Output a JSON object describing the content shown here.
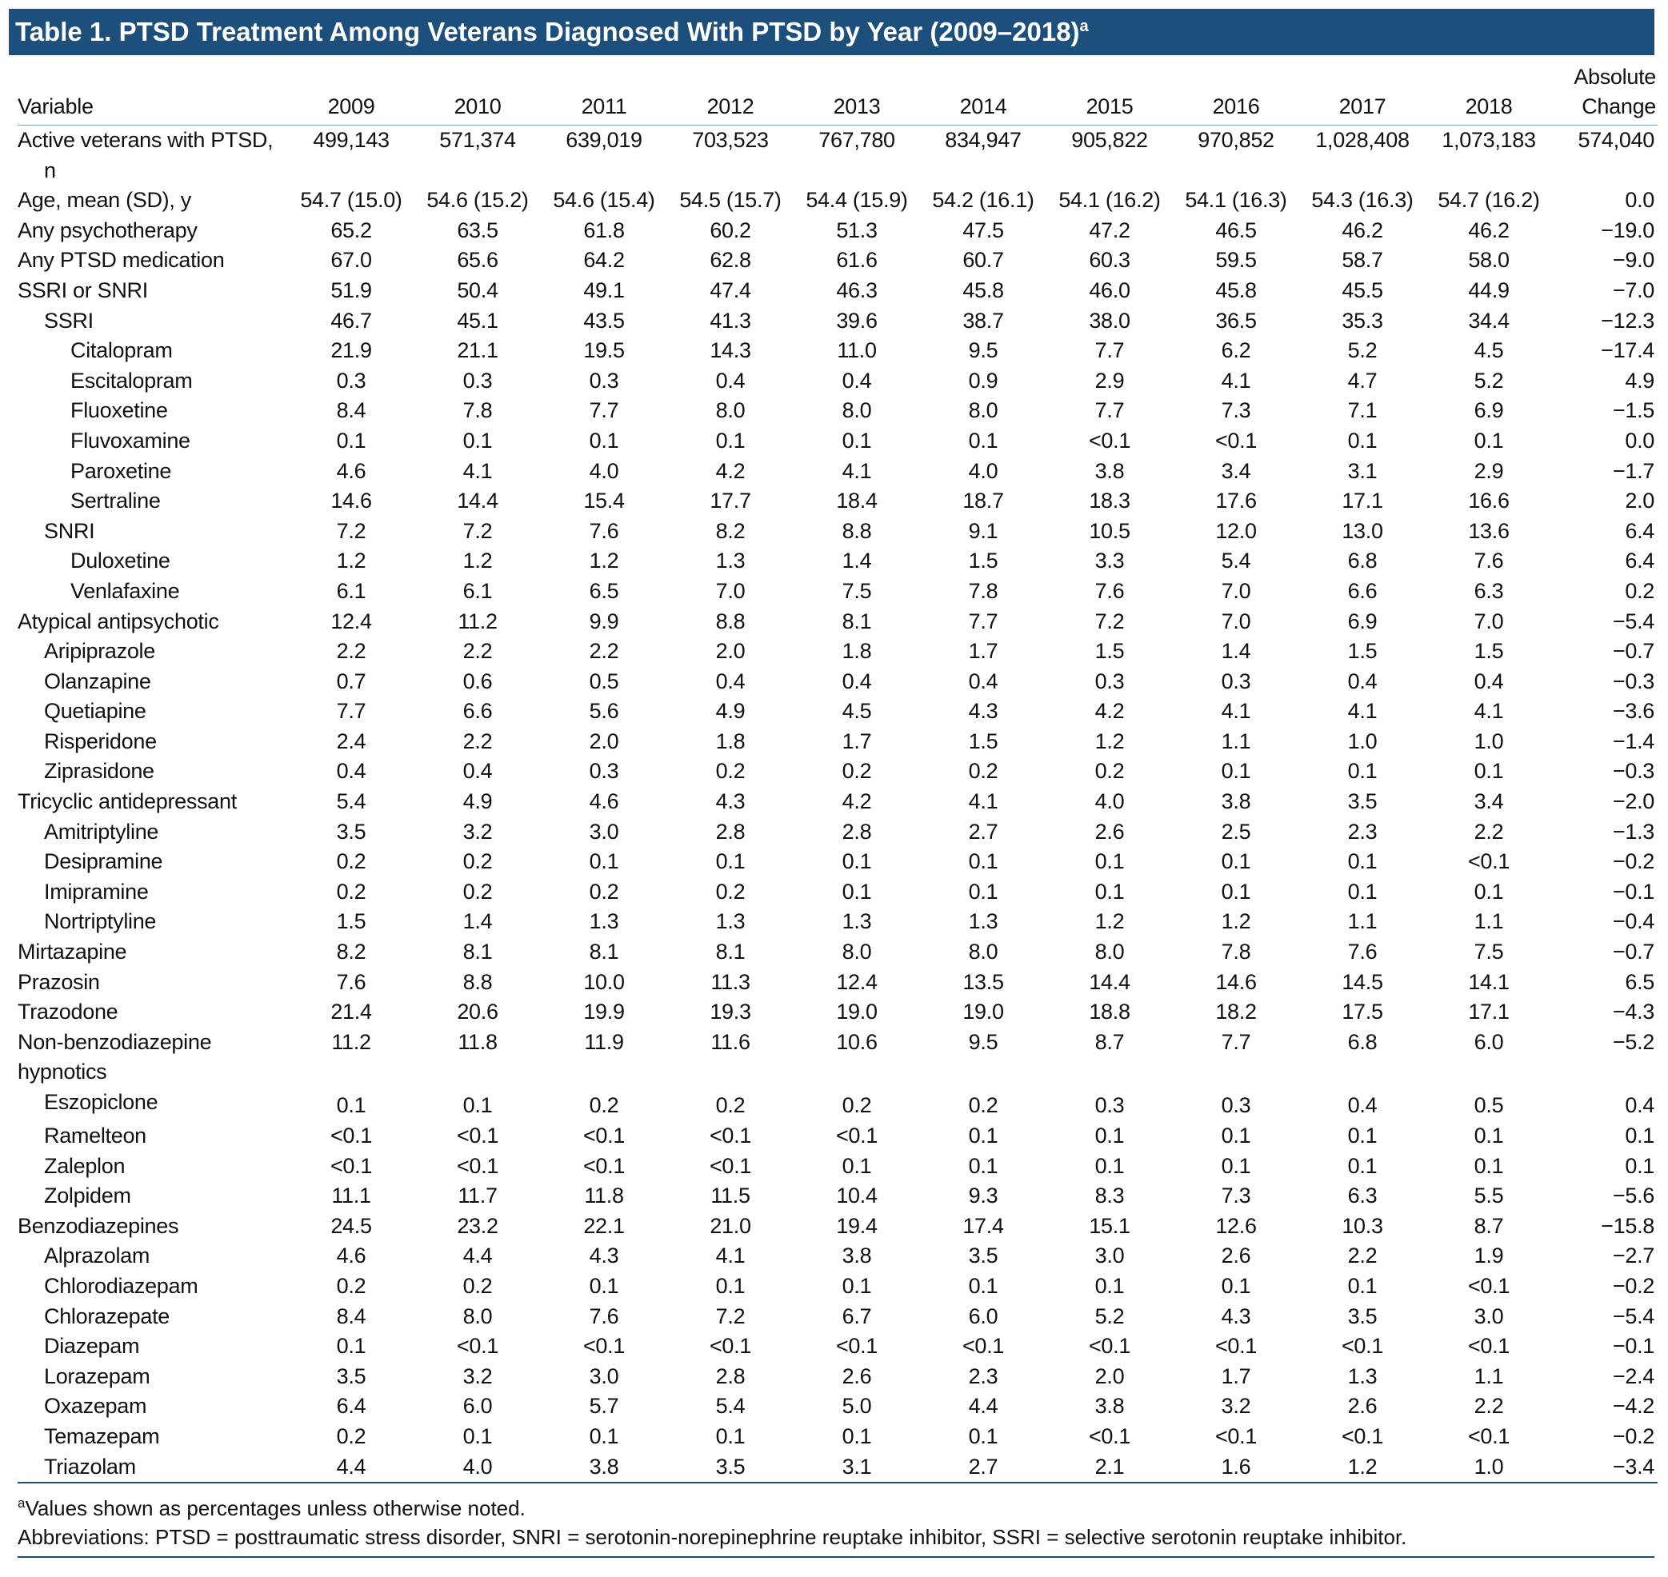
{
  "table": {
    "title": "Table 1. PTSD Treatment Among Veterans Diagnosed With PTSD by Year (2009–2018)",
    "title_marker": "a",
    "header": [
      "Variable",
      "2009",
      "2010",
      "2011",
      "2012",
      "2013",
      "2014",
      "2015",
      "2016",
      "2017",
      "2018",
      "Absolute Change"
    ],
    "rows": [
      {
        "label": "Active veterans with PTSD, n",
        "values": [
          "499,143",
          "571,374",
          "639,019",
          "703,523",
          "767,780",
          "834,947",
          "905,822",
          "970,852",
          "1,028,408",
          "1,073,183",
          "574,040"
        ]
      },
      {
        "label": "Age, mean (SD), y",
        "values": [
          "54.7 (15.0)",
          "54.6 (15.2)",
          "54.6 (15.4)",
          "54.5 (15.7)",
          "54.4 (15.9)",
          "54.2 (16.1)",
          "54.1 (16.2)",
          "54.1 (16.3)",
          "54.3 (16.3)",
          "54.7 (16.2)",
          "0.0"
        ]
      },
      {
        "label": "Any psychotherapy",
        "values": [
          "65.2",
          "63.5",
          "61.8",
          "60.2",
          "51.3",
          "47.5",
          "47.2",
          "46.5",
          "46.2",
          "46.2",
          "−19.0"
        ]
      },
      {
        "label": "Any PTSD medication",
        "values": [
          "67.0",
          "65.6",
          "64.2",
          "62.8",
          "61.6",
          "60.7",
          "60.3",
          "59.5",
          "58.7",
          "58.0",
          "−9.0"
        ]
      },
      {
        "label": "SSRI or SNRI",
        "values": [
          "51.9",
          "50.4",
          "49.1",
          "47.4",
          "46.3",
          "45.8",
          "46.0",
          "45.8",
          "45.5",
          "44.9",
          "−7.0"
        ]
      },
      {
        "label": "SSRI",
        "values": [
          "46.7",
          "45.1",
          "43.5",
          "41.3",
          "39.6",
          "38.7",
          "38.0",
          "36.5",
          "35.3",
          "34.4",
          "−12.3"
        ]
      },
      {
        "label": "Citalopram",
        "values": [
          "21.9",
          "21.1",
          "19.5",
          "14.3",
          "11.0",
          "9.5",
          "7.7",
          "6.2",
          "5.2",
          "4.5",
          "−17.4"
        ]
      },
      {
        "label": "Escitalopram",
        "values": [
          "0.3",
          "0.3",
          "0.3",
          "0.4",
          "0.4",
          "0.9",
          "2.9",
          "4.1",
          "4.7",
          "5.2",
          "4.9"
        ]
      },
      {
        "label": "Fluoxetine",
        "values": [
          "8.4",
          "7.8",
          "7.7",
          "8.0",
          "8.0",
          "8.0",
          "7.7",
          "7.3",
          "7.1",
          "6.9",
          "−1.5"
        ]
      },
      {
        "label": "Fluvoxamine",
        "values": [
          "0.1",
          "0.1",
          "0.1",
          "0.1",
          "0.1",
          "0.1",
          "<0.1",
          "<0.1",
          "0.1",
          "0.1",
          "0.0"
        ]
      },
      {
        "label": "Paroxetine",
        "values": [
          "4.6",
          "4.1",
          "4.0",
          "4.2",
          "4.1",
          "4.0",
          "3.8",
          "3.4",
          "3.1",
          "2.9",
          "−1.7"
        ]
      },
      {
        "label": "Sertraline",
        "values": [
          "14.6",
          "14.4",
          "15.4",
          "17.7",
          "18.4",
          "18.7",
          "18.3",
          "17.6",
          "17.1",
          "16.6",
          "2.0"
        ]
      },
      {
        "label": "SNRI",
        "values": [
          "7.2",
          "7.2",
          "7.6",
          "8.2",
          "8.8",
          "9.1",
          "10.5",
          "12.0",
          "13.0",
          "13.6",
          "6.4"
        ]
      },
      {
        "label": "Duloxetine",
        "values": [
          "1.2",
          "1.2",
          "1.2",
          "1.3",
          "1.4",
          "1.5",
          "3.3",
          "5.4",
          "6.8",
          "7.6",
          "6.4"
        ]
      },
      {
        "label": "Venlafaxine",
        "values": [
          "6.1",
          "6.1",
          "6.5",
          "7.0",
          "7.5",
          "7.8",
          "7.6",
          "7.0",
          "6.6",
          "6.3",
          "0.2"
        ]
      },
      {
        "label": "Atypical antipsychotic",
        "values": [
          "12.4",
          "11.2",
          "9.9",
          "8.8",
          "8.1",
          "7.7",
          "7.2",
          "7.0",
          "6.9",
          "7.0",
          "−5.4"
        ]
      },
      {
        "label": "Aripiprazole",
        "values": [
          "2.2",
          "2.2",
          "2.2",
          "2.0",
          "1.8",
          "1.7",
          "1.5",
          "1.4",
          "1.5",
          "1.5",
          "−0.7"
        ]
      },
      {
        "label": "Olanzapine",
        "values": [
          "0.7",
          "0.6",
          "0.5",
          "0.4",
          "0.4",
          "0.4",
          "0.3",
          "0.3",
          "0.4",
          "0.4",
          "−0.3"
        ]
      },
      {
        "label": "Quetiapine",
        "values": [
          "7.7",
          "6.6",
          "5.6",
          "4.9",
          "4.5",
          "4.3",
          "4.2",
          "4.1",
          "4.1",
          "4.1",
          "−3.6"
        ]
      },
      {
        "label": "Risperidone",
        "values": [
          "2.4",
          "2.2",
          "2.0",
          "1.8",
          "1.7",
          "1.5",
          "1.2",
          "1.1",
          "1.0",
          "1.0",
          "−1.4"
        ]
      },
      {
        "label": "Ziprasidone",
        "values": [
          "0.4",
          "0.4",
          "0.3",
          "0.2",
          "0.2",
          "0.2",
          "0.2",
          "0.1",
          "0.1",
          "0.1",
          "−0.3"
        ]
      },
      {
        "label": "Tricyclic antidepressant",
        "values": [
          "5.4",
          "4.9",
          "4.6",
          "4.3",
          "4.2",
          "4.1",
          "4.0",
          "3.8",
          "3.5",
          "3.4",
          "−2.0"
        ]
      },
      {
        "label": "Amitriptyline",
        "values": [
          "3.5",
          "3.2",
          "3.0",
          "2.8",
          "2.8",
          "2.7",
          "2.6",
          "2.5",
          "2.3",
          "2.2",
          "−1.3"
        ]
      },
      {
        "label": "Desipramine",
        "values": [
          "0.2",
          "0.2",
          "0.1",
          "0.1",
          "0.1",
          "0.1",
          "0.1",
          "0.1",
          "0.1",
          "<0.1",
          "−0.2"
        ]
      },
      {
        "label": "Imipramine",
        "values": [
          "0.2",
          "0.2",
          "0.2",
          "0.2",
          "0.1",
          "0.1",
          "0.1",
          "0.1",
          "0.1",
          "0.1",
          "−0.1"
        ]
      },
      {
        "label": "Nortriptyline",
        "values": [
          "1.5",
          "1.4",
          "1.3",
          "1.3",
          "1.3",
          "1.3",
          "1.2",
          "1.2",
          "1.1",
          "1.1",
          "−0.4"
        ]
      },
      {
        "label": "Mirtazapine",
        "values": [
          "8.2",
          "8.1",
          "8.1",
          "8.1",
          "8.0",
          "8.0",
          "8.0",
          "7.8",
          "7.6",
          "7.5",
          "−0.7"
        ]
      },
      {
        "label": "Prazosin",
        "values": [
          "7.6",
          "8.8",
          "10.0",
          "11.3",
          "12.4",
          "13.5",
          "14.4",
          "14.6",
          "14.5",
          "14.1",
          "6.5"
        ]
      },
      {
        "label": "Trazodone",
        "values": [
          "21.4",
          "20.6",
          "19.9",
          "19.3",
          "19.0",
          "19.0",
          "18.8",
          "18.2",
          "17.5",
          "17.1",
          "−4.3"
        ]
      },
      {
        "label": "Non-benzodiazepine hypnotics",
        "values": [
          "11.2",
          "11.8",
          "11.9",
          "11.6",
          "10.6",
          "9.5",
          "8.7",
          "7.7",
          "6.8",
          "6.0",
          "−5.2"
        ]
      },
      {
        "label": "Eszopiclone",
        "values": [
          "0.1",
          "0.1",
          "0.2",
          "0.2",
          "0.2",
          "0.2",
          "0.3",
          "0.3",
          "0.4",
          "0.5",
          "0.4"
        ]
      },
      {
        "label": "Ramelteon",
        "values": [
          "<0.1",
          "<0.1",
          "<0.1",
          "<0.1",
          "<0.1",
          "0.1",
          "0.1",
          "0.1",
          "0.1",
          "0.1",
          "0.1"
        ]
      },
      {
        "label": "Zaleplon",
        "values": [
          "<0.1",
          "<0.1",
          "<0.1",
          "<0.1",
          "0.1",
          "0.1",
          "0.1",
          "0.1",
          "0.1",
          "0.1",
          "0.1"
        ]
      },
      {
        "label": "Zolpidem",
        "values": [
          "11.1",
          "11.7",
          "11.8",
          "11.5",
          "10.4",
          "9.3",
          "8.3",
          "7.3",
          "6.3",
          "5.5",
          "−5.6"
        ]
      },
      {
        "label": "Benzodiazepines",
        "values": [
          "24.5",
          "23.2",
          "22.1",
          "21.0",
          "19.4",
          "17.4",
          "15.1",
          "12.6",
          "10.3",
          "8.7",
          "−15.8"
        ]
      },
      {
        "label": "Alprazolam",
        "values": [
          "4.6",
          "4.4",
          "4.3",
          "4.1",
          "3.8",
          "3.5",
          "3.0",
          "2.6",
          "2.2",
          "1.9",
          "−2.7"
        ]
      },
      {
        "label": "Chlorodiazepam",
        "values": [
          "0.2",
          "0.2",
          "0.1",
          "0.1",
          "0.1",
          "0.1",
          "0.1",
          "0.1",
          "0.1",
          "<0.1",
          "−0.2"
        ]
      },
      {
        "label": "Chlorazepate",
        "values": [
          "8.4",
          "8.0",
          "7.6",
          "7.2",
          "6.7",
          "6.0",
          "5.2",
          "4.3",
          "3.5",
          "3.0",
          "−5.4"
        ]
      },
      {
        "label": "Diazepam",
        "values": [
          "0.1",
          "<0.1",
          "<0.1",
          "<0.1",
          "<0.1",
          "<0.1",
          "<0.1",
          "<0.1",
          "<0.1",
          "<0.1",
          "−0.1"
        ]
      },
      {
        "label": "Lorazepam",
        "values": [
          "3.5",
          "3.2",
          "3.0",
          "2.8",
          "2.6",
          "2.3",
          "2.0",
          "1.7",
          "1.3",
          "1.1",
          "−2.4"
        ]
      },
      {
        "label": "Oxazepam",
        "values": [
          "6.4",
          "6.0",
          "5.7",
          "5.4",
          "5.0",
          "4.4",
          "3.8",
          "3.2",
          "2.6",
          "2.2",
          "−4.2"
        ]
      },
      {
        "label": "Temazepam",
        "values": [
          "0.2",
          "0.1",
          "0.1",
          "0.1",
          "0.1",
          "0.1",
          "<0.1",
          "<0.1",
          "<0.1",
          "<0.1",
          "−0.2"
        ]
      },
      {
        "label": "Triazolam",
        "values": [
          "4.4",
          "4.0",
          "3.8",
          "3.5",
          "3.1",
          "2.7",
          "2.1",
          "1.6",
          "1.2",
          "1.0",
          "−3.4"
        ]
      }
    ],
    "footnotes": [
      {
        "marker": "a",
        "text": "Values shown as percentages unless otherwise noted."
      },
      {
        "text": "Abbreviations: PTSD = posttraumatic stress disorder, SNRI = serotonin-norepinephrine reuptake inhibitor, SSRI = selective serotonin reuptake inhibitor."
      }
    ]
  }
}
